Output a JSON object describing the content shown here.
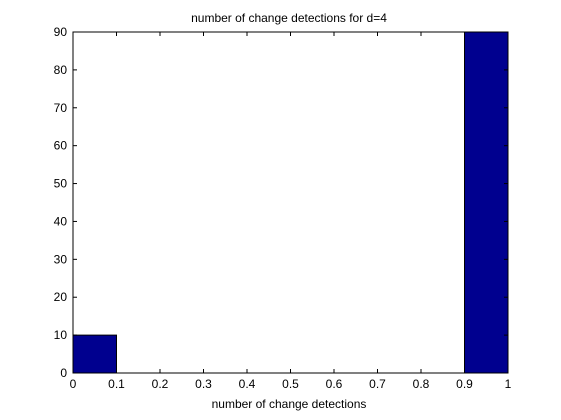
{
  "chart_data": {
    "type": "bar",
    "title": "number of change detections for d=4",
    "xlabel": "number of change detections",
    "ylabel": "",
    "xlim": [
      0,
      1
    ],
    "ylim": [
      0,
      90
    ],
    "xticks": [
      "0",
      "0.1",
      "0.2",
      "0.3",
      "0.4",
      "0.5",
      "0.6",
      "0.7",
      "0.8",
      "0.9",
      "1"
    ],
    "yticks": [
      "0",
      "10",
      "20",
      "30",
      "40",
      "50",
      "60",
      "70",
      "80",
      "90"
    ],
    "bins": [
      {
        "x0": 0,
        "x1": 0.1,
        "value": 10
      },
      {
        "x0": 0.9,
        "x1": 1.0,
        "value": 90
      }
    ],
    "grid": false,
    "bar_color": "#00008f",
    "bar_edge_color": "#000000"
  }
}
